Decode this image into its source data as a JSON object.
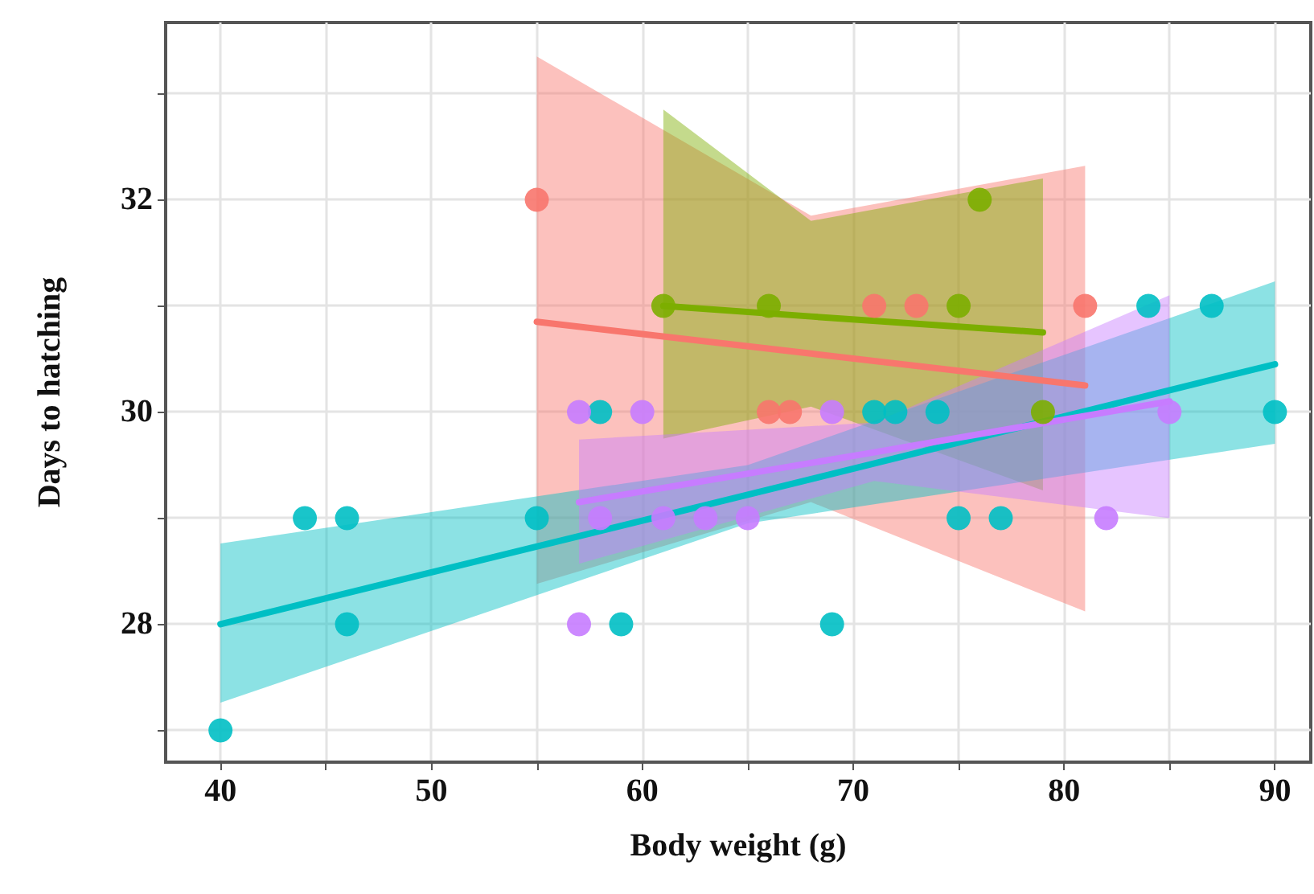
{
  "chart_data": {
    "type": "scatter",
    "xlabel": "Body weight (g)",
    "ylabel": "Days to hatching",
    "xlim": [
      37.4,
      91.7
    ],
    "ylim": [
      26.7,
      33.67
    ],
    "xticks": [
      40,
      {
        "value": 45,
        "label": null
      },
      50,
      {
        "value": 55,
        "label": null
      },
      60,
      {
        "value": 65,
        "label": null
      },
      70,
      {
        "value": 75,
        "label": null
      },
      80,
      {
        "value": 85,
        "label": null
      },
      90
    ],
    "yticks": [
      {
        "value": 27,
        "label": null
      },
      28,
      {
        "value": 29,
        "label": null
      },
      30,
      {
        "value": 31,
        "label": null
      },
      32,
      {
        "value": 33,
        "label": null
      }
    ],
    "grid": true,
    "marker": "circle",
    "series": [
      {
        "type": "line",
        "marker": "none",
        "color": "#f8766d",
        "x": [
          55,
          68,
          81
        ],
        "values": [
          30.85,
          30.55,
          30.25
        ],
        "lower": [
          28.38,
          29.15,
          28.12
        ],
        "upper": [
          33.35,
          31.85,
          32.32
        ]
      },
      {
        "type": "line",
        "marker": "none",
        "color": "#7cae00",
        "x": [
          61,
          68,
          79
        ],
        "values": [
          31.0,
          30.9,
          30.75
        ],
        "lower": [
          29.75,
          30.05,
          29.26
        ],
        "upper": [
          32.85,
          31.8,
          32.2
        ]
      },
      {
        "type": "line",
        "marker": "none",
        "color": "#00bfc4",
        "x": [
          40,
          65,
          90
        ],
        "values": [
          28.0,
          29.22,
          30.45
        ],
        "lower": [
          27.26,
          28.95,
          29.7
        ],
        "upper": [
          28.76,
          29.5,
          31.23
        ]
      },
      {
        "type": "line",
        "marker": "none",
        "color": "#c77cff",
        "x": [
          57,
          71,
          85
        ],
        "values": [
          29.15,
          29.62,
          30.1
        ],
        "lower": [
          28.57,
          29.35,
          29.0
        ],
        "upper": [
          29.74,
          29.9,
          31.1
        ]
      },
      {
        "color": "#f8766d",
        "x": [
          55,
          71,
          73,
          81,
          66,
          67
        ],
        "values": [
          32,
          31,
          31,
          31,
          30,
          30
        ]
      },
      {
        "color": "#7cae00",
        "x": [
          61,
          66,
          75,
          76,
          79
        ],
        "values": [
          31,
          31,
          31,
          32,
          30
        ]
      },
      {
        "color": "#00bfc4",
        "x": [
          40,
          44,
          46,
          46,
          55,
          58,
          59,
          69,
          71,
          72,
          74,
          75,
          77,
          84,
          87,
          90
        ],
        "values": [
          27,
          29,
          29,
          28,
          29,
          30,
          28,
          28,
          30,
          30,
          30,
          29,
          29,
          31,
          31,
          30
        ]
      },
      {
        "color": "#c77cff",
        "x": [
          57,
          57,
          60,
          58,
          61,
          63,
          65,
          69,
          82,
          85
        ],
        "values": [
          30,
          28,
          30,
          29,
          29,
          29,
          29,
          30,
          29,
          30
        ]
      }
    ]
  }
}
